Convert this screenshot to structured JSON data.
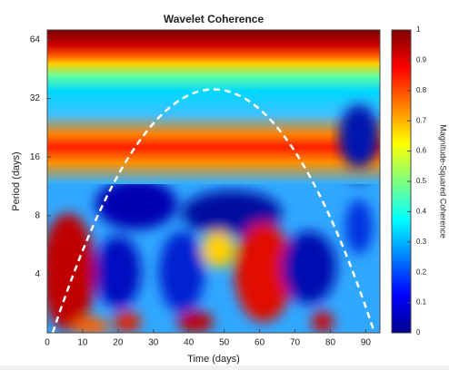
{
  "chart_data": {
    "type": "heatmap",
    "title": "Wavelet Coherence",
    "x_label": "Time (days)",
    "y_label": "Period (days)",
    "colorbar_label": "Magnitude-Squared Coherence",
    "colormap": "jet",
    "xlim": [
      0,
      94
    ],
    "xticks": [
      0,
      10,
      20,
      30,
      40,
      50,
      60,
      70,
      80,
      90
    ],
    "ylim": [
      2,
      72
    ],
    "yticks": [
      4,
      8,
      16,
      32,
      64
    ],
    "yscale": "log",
    "clim": [
      0,
      1
    ],
    "cticks": [
      0,
      0.1,
      0.2,
      0.3,
      0.4,
      0.5,
      0.6,
      0.7,
      0.8,
      0.9,
      1
    ]
  }
}
